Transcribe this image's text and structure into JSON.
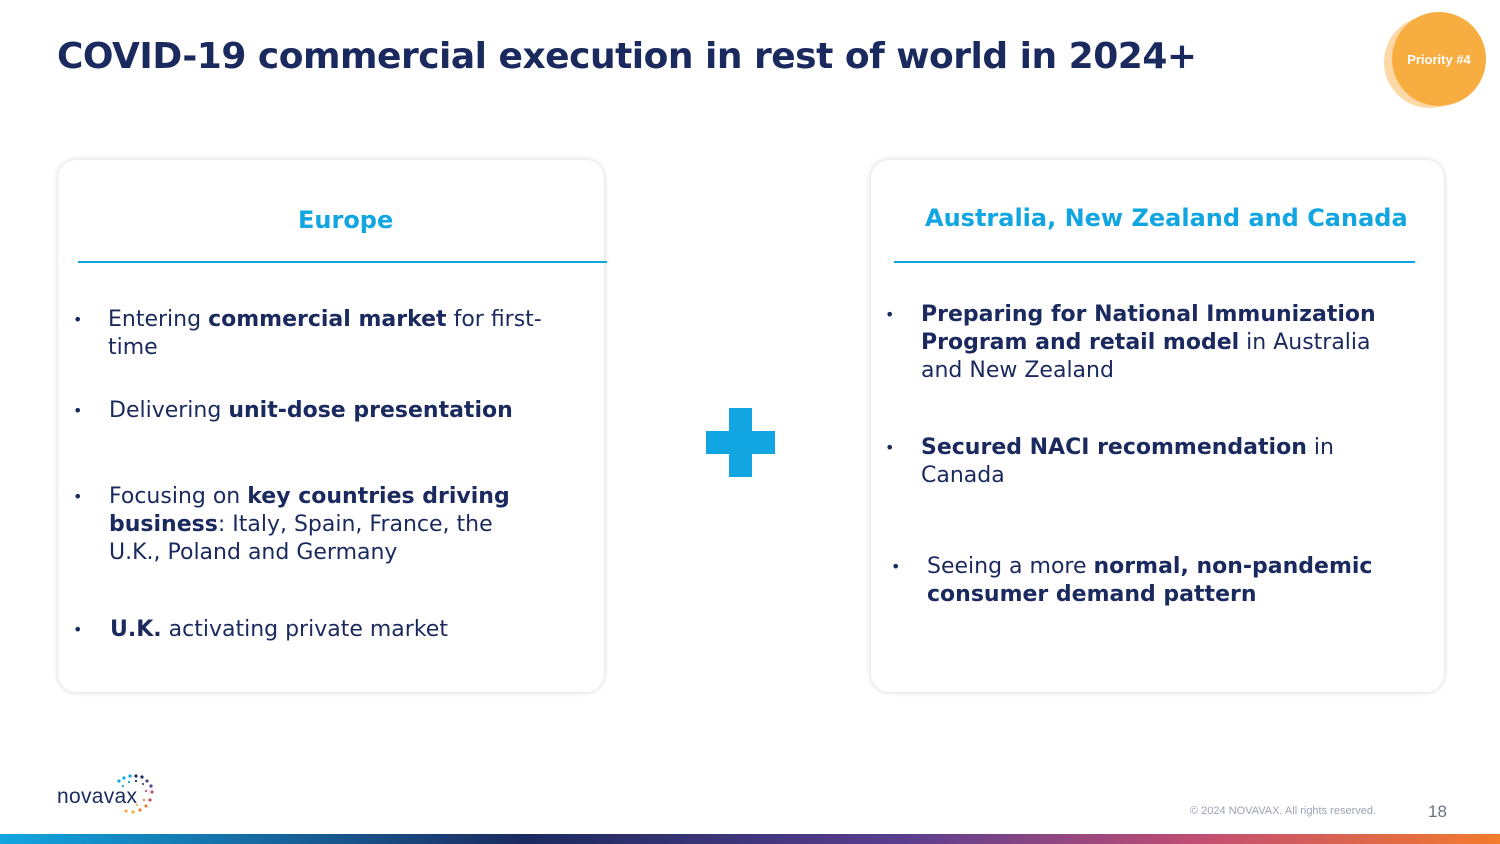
{
  "slide": {
    "title": "COVID-19 commercial execution in rest of world in 2024+",
    "priority_badge": "Priority #4"
  },
  "europe_card": {
    "heading": "Europe",
    "bullets": [
      {
        "pre": "Entering ",
        "bold": "commercial market",
        "post": " for first-time"
      },
      {
        "pre": "Delivering ",
        "bold": "unit-dose presentation",
        "post": ""
      },
      {
        "pre": "Focusing on ",
        "bold": "key countries driving business",
        "post": ": Italy, Spain, France, the U.K., Poland and Germany"
      },
      {
        "pre": "",
        "bold": "U.K.",
        "post": " activating private market"
      }
    ]
  },
  "anz_canada_card": {
    "heading": "Australia, New Zealand and Canada",
    "bullets": [
      {
        "pre": "",
        "bold": "Preparing for National Immunization Program and retail model",
        "post": " in Australia and New Zealand"
      },
      {
        "pre": "",
        "bold": "Secured NACI recommendation",
        "post": " in Canada"
      },
      {
        "pre": "Seeing a more ",
        "bold": "normal, non-pandemic consumer demand pattern",
        "post": ""
      }
    ]
  },
  "footer": {
    "logo_text": "novavax",
    "copyright": "© 2024 NOVAVAX. All rights reserved.",
    "page_number": "18"
  },
  "colors": {
    "navy": "#1b2a5e",
    "accent_blue": "#11a6e1",
    "badge_orange": "#f7ad3f"
  },
  "icons": {
    "plus": "plus-icon",
    "logo": "novavax-logo"
  }
}
